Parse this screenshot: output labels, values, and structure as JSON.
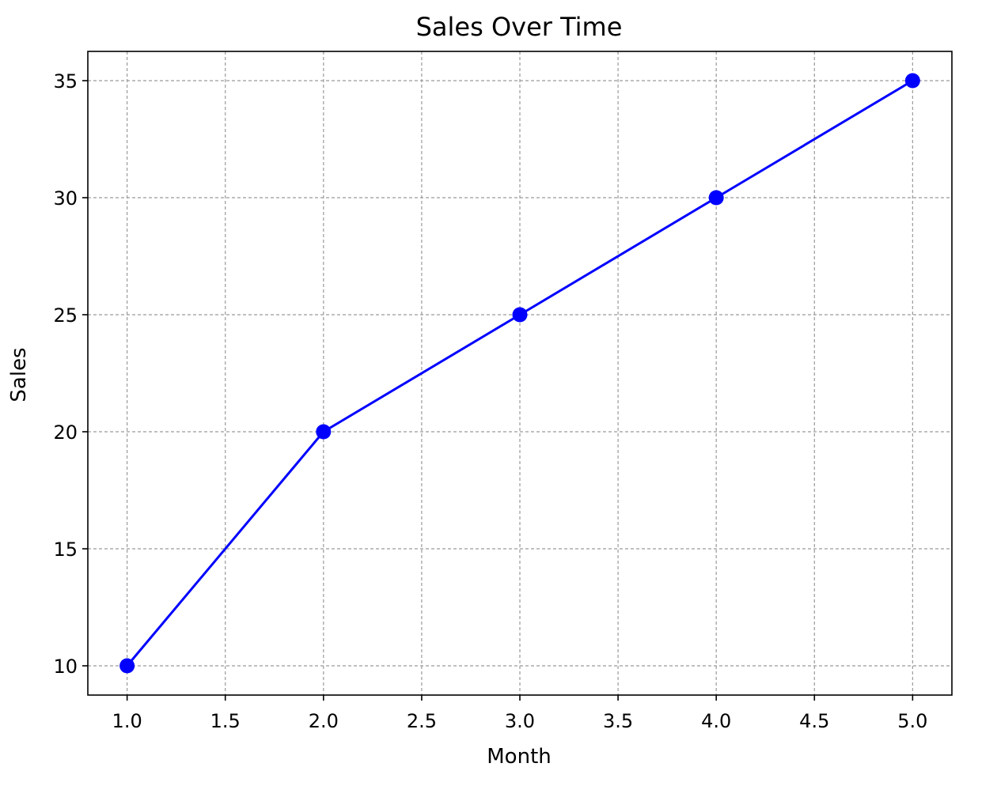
{
  "chart_data": {
    "type": "line",
    "title": "Sales Over Time",
    "xlabel": "Month",
    "ylabel": "Sales",
    "x": [
      1,
      2,
      3,
      4,
      5
    ],
    "series": [
      {
        "values": [
          10,
          20,
          25,
          30,
          35
        ],
        "color": "#0000ff",
        "marker": "circle"
      }
    ],
    "xlim": [
      0.8,
      5.2
    ],
    "ylim": [
      8.75,
      36.25
    ],
    "xticks": [
      1.0,
      1.5,
      2.0,
      2.5,
      3.0,
      3.5,
      4.0,
      4.5,
      5.0
    ],
    "xtick_labels": [
      "1.0",
      "1.5",
      "2.0",
      "2.5",
      "3.0",
      "3.5",
      "4.0",
      "4.5",
      "5.0"
    ],
    "yticks": [
      10,
      15,
      20,
      25,
      30,
      35
    ],
    "ytick_labels": [
      "10",
      "15",
      "20",
      "25",
      "30",
      "35"
    ],
    "grid": true,
    "grid_style": "dashed"
  }
}
